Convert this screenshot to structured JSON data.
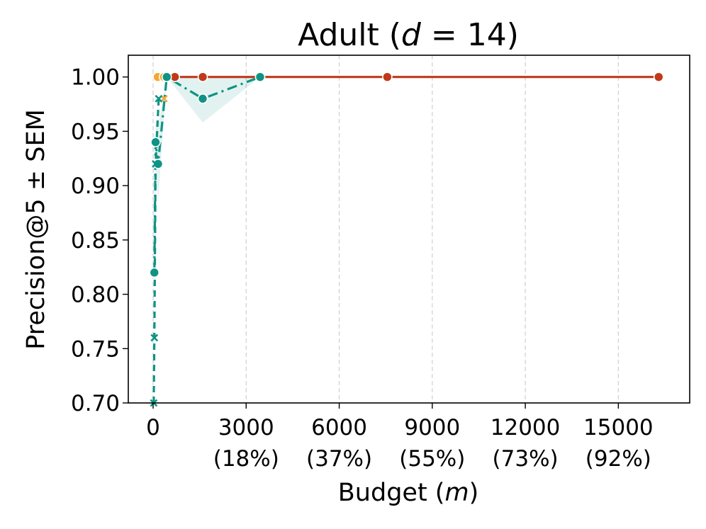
{
  "chart_data": {
    "type": "line",
    "title_prefix": "Adult (",
    "title_var": "d",
    "title_suffix": " = 14)",
    "xlabel_prefix": "Budget (",
    "xlabel_var": "m",
    "xlabel_suffix": ")",
    "ylabel": "Precision@5 ± SEM",
    "xlim": [
      -800,
      17300
    ],
    "ylim": [
      0.7,
      1.02
    ],
    "grid": "x-dashed",
    "x_ticks": [
      {
        "value": 0,
        "label": "0",
        "pct": ""
      },
      {
        "value": 3000,
        "label": "3000",
        "pct": "(18%)"
      },
      {
        "value": 6000,
        "label": "6000",
        "pct": "(37%)"
      },
      {
        "value": 9000,
        "label": "9000",
        "pct": "(55%)"
      },
      {
        "value": 12000,
        "label": "12000",
        "pct": "(73%)"
      },
      {
        "value": 15000,
        "label": "15000",
        "pct": "(92%)"
      }
    ],
    "y_ticks": [
      "0.70",
      "0.75",
      "0.80",
      "0.85",
      "0.90",
      "0.95",
      "1.00"
    ],
    "y_tick_values": [
      0.7,
      0.75,
      0.8,
      0.85,
      0.9,
      0.95,
      1.0
    ],
    "series": [
      {
        "color": "#c0391b",
        "dash": "",
        "marker": "circle",
        "x": [
          700,
          1600,
          3450,
          7550,
          16300
        ],
        "y": [
          1.0,
          1.0,
          1.0,
          1.0,
          1.0
        ],
        "sem": []
      },
      {
        "color": "#f5a733",
        "dash": "",
        "marker": "circle",
        "x": [
          150,
          350
        ],
        "y": [
          1.0,
          1.0
        ],
        "sem": []
      },
      {
        "color": "#f5a733",
        "dash": "8,6",
        "marker": "x",
        "x": [
          350
        ],
        "y": [
          0.98
        ],
        "sem": []
      },
      {
        "color": "#0e9384",
        "dash": "14,6,3,6",
        "marker": "circle",
        "x": [
          40,
          80,
          160,
          440,
          1600,
          3450
        ],
        "y": [
          0.82,
          0.94,
          0.92,
          1.0,
          0.98,
          1.0
        ],
        "sem": [
          0.02,
          0.02,
          0.035,
          0.0,
          0.022,
          0.0
        ]
      },
      {
        "color": "#0e9384",
        "dash": "9,6",
        "marker": "x",
        "x": [
          20,
          40,
          80,
          180
        ],
        "y": [
          0.7,
          0.76,
          0.92,
          0.98
        ],
        "sem": []
      }
    ]
  }
}
